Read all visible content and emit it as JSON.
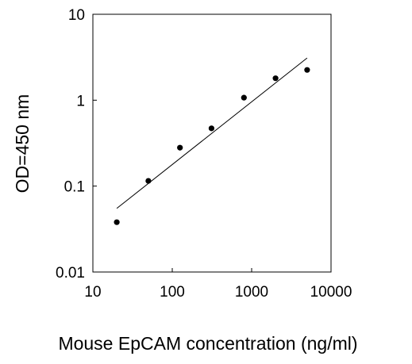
{
  "chart_data": {
    "type": "scatter",
    "title": "",
    "xlabel": "Mouse EpCAM concentration (ng/ml)",
    "ylabel": "OD=450 nm",
    "x_scale": "log",
    "y_scale": "log",
    "xlim": [
      10,
      10000
    ],
    "ylim": [
      0.01,
      10
    ],
    "x_ticks": [
      "10",
      "100",
      "1000",
      "10000"
    ],
    "y_ticks": [
      "10",
      "1",
      "0.1",
      "0.01"
    ],
    "grid": false,
    "legend": "none",
    "series": [
      {
        "x": [
          20,
          50,
          125,
          312,
          800,
          2000,
          5000
        ],
        "y": [
          0.038,
          0.115,
          0.28,
          0.47,
          1.07,
          1.8,
          2.25
        ]
      }
    ],
    "trendline": {
      "x": [
        20,
        5000
      ],
      "y": [
        0.055,
        3.1
      ]
    },
    "colors": {
      "marker": "#000000",
      "line": "#000000",
      "axis": "#000000"
    }
  }
}
